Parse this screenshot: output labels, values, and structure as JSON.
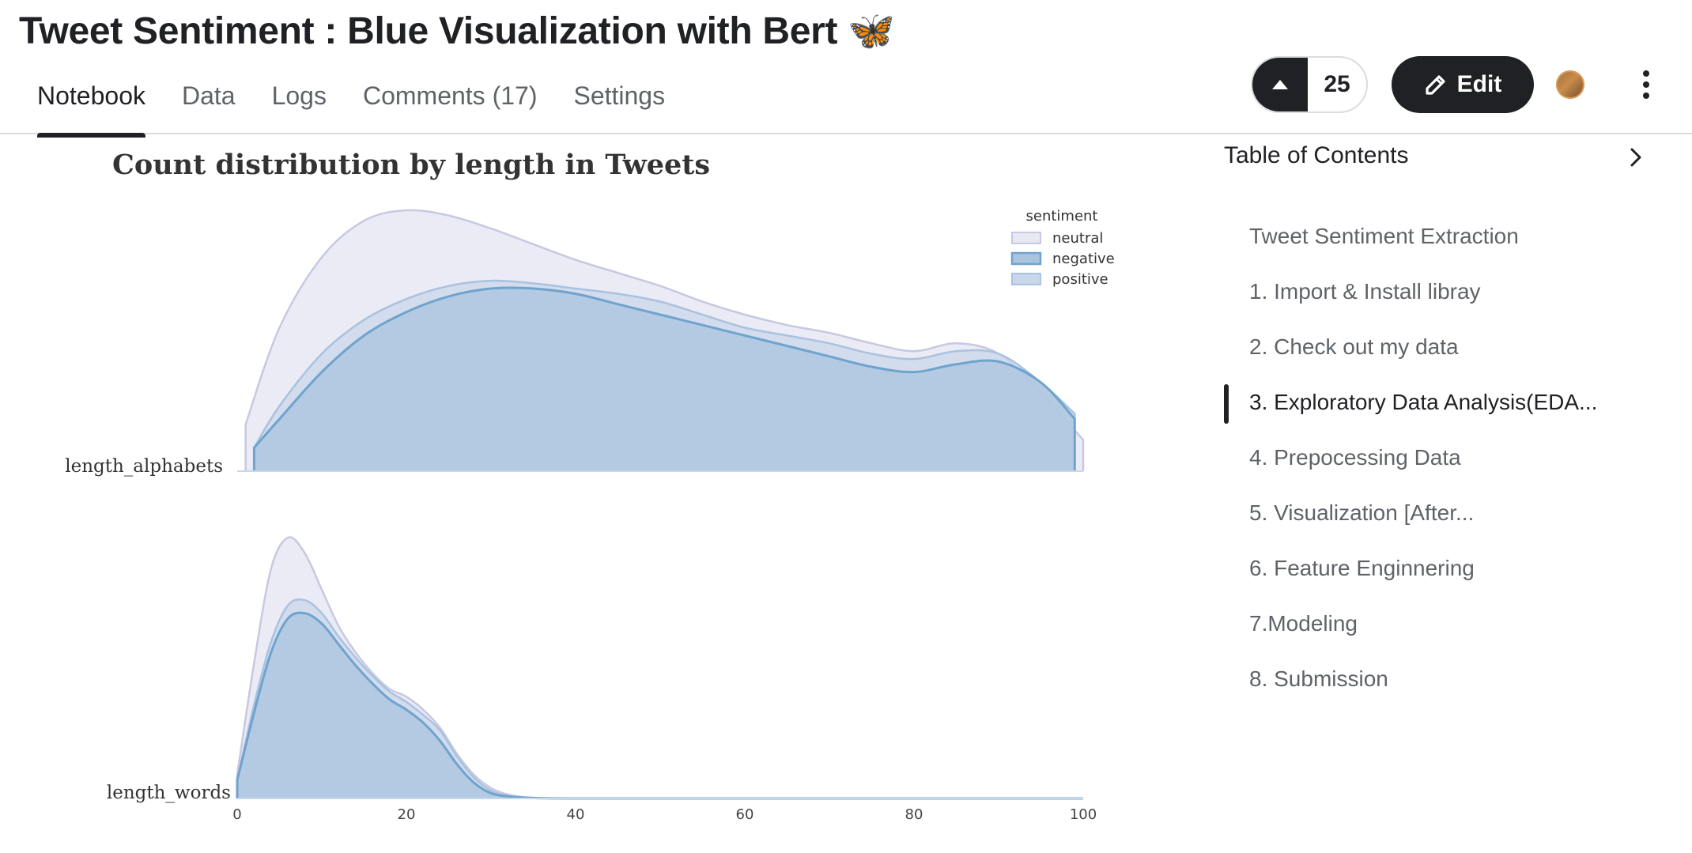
{
  "notebook": {
    "title": "Tweet Sentiment : Blue Visualization with Bert 🦋",
    "tabs": [
      {
        "label": "Notebook",
        "active": true
      },
      {
        "label": "Data",
        "active": false
      },
      {
        "label": "Logs",
        "active": false
      },
      {
        "label": "Comments (17)",
        "active": false
      },
      {
        "label": "Settings",
        "active": false
      }
    ],
    "vote_count": "25",
    "edit_label": "Edit"
  },
  "toc": {
    "header": "Table of Contents",
    "items": [
      {
        "label": "Tweet Sentiment Extraction",
        "active": false
      },
      {
        "label": "1. Import & Install libray",
        "active": false
      },
      {
        "label": "2. Check out my data",
        "active": false
      },
      {
        "label": "3. Exploratory Data Analysis(EDA...",
        "active": true
      },
      {
        "label": "4. Prepocessing Data",
        "active": false
      },
      {
        "label": "5. Visualization [After...",
        "active": false
      },
      {
        "label": "6. Feature Enginnering",
        "active": false
      },
      {
        "label": "7.Modeling",
        "active": false
      },
      {
        "label": "8. Submission",
        "active": false
      }
    ]
  },
  "chart_data": {
    "type": "area",
    "title": "Count distribution by length in Tweets",
    "legend": {
      "title": "sentiment",
      "placement": "top-right",
      "entries": [
        "neutral",
        "negative",
        "positive"
      ]
    },
    "xlim": [
      0,
      100
    ],
    "x_ticks": [
      0,
      20,
      40,
      60,
      80,
      100
    ],
    "colors": {
      "neutral": "#e8e8f3",
      "negative": "#a8c4de",
      "positive": "#c9d7ea",
      "negative_line": "#6fa3cd",
      "neutral_line": "#c7c8e2",
      "positive_line": "#a9c2e0"
    },
    "rows": [
      {
        "label": "length_alphabets",
        "series": [
          {
            "name": "neutral",
            "x": [
              1,
              5,
              10,
              15,
              20,
              25,
              30,
              35,
              40,
              45,
              50,
              55,
              60,
              65,
              70,
              75,
              80,
              85,
              90,
              95,
              100
            ],
            "y": [
              0.18,
              0.55,
              0.82,
              0.96,
              1.0,
              0.98,
              0.93,
              0.87,
              0.81,
              0.76,
              0.71,
              0.65,
              0.6,
              0.56,
              0.53,
              0.49,
              0.46,
              0.49,
              0.45,
              0.3,
              0.12
            ]
          },
          {
            "name": "positive",
            "x": [
              2,
              5,
              10,
              15,
              20,
              25,
              30,
              35,
              40,
              45,
              50,
              55,
              60,
              65,
              70,
              75,
              80,
              85,
              90,
              95,
              99
            ],
            "y": [
              0.09,
              0.25,
              0.45,
              0.58,
              0.66,
              0.71,
              0.73,
              0.72,
              0.7,
              0.68,
              0.65,
              0.6,
              0.55,
              0.52,
              0.49,
              0.45,
              0.43,
              0.46,
              0.45,
              0.34,
              0.22
            ]
          },
          {
            "name": "negative",
            "x": [
              2,
              5,
              10,
              15,
              20,
              25,
              30,
              35,
              40,
              45,
              50,
              55,
              60,
              65,
              70,
              75,
              80,
              85,
              90,
              95,
              99
            ],
            "y": [
              0.09,
              0.2,
              0.38,
              0.52,
              0.61,
              0.67,
              0.7,
              0.7,
              0.68,
              0.64,
              0.6,
              0.56,
              0.52,
              0.48,
              0.44,
              0.4,
              0.38,
              0.41,
              0.42,
              0.34,
              0.2
            ]
          }
        ]
      },
      {
        "label": "length_words",
        "series": [
          {
            "name": "neutral",
            "x": [
              0,
              2,
              4,
              6,
              8,
              10,
              12,
              14,
              16,
              18,
              20,
              22,
              24,
              26,
              28,
              30,
              32,
              34,
              36,
              40,
              60,
              100
            ],
            "y": [
              0.09,
              0.52,
              0.88,
              1.0,
              0.94,
              0.8,
              0.66,
              0.56,
              0.48,
              0.42,
              0.39,
              0.34,
              0.27,
              0.17,
              0.09,
              0.04,
              0.015,
              0.005,
              0.002,
              0.001,
              0.0,
              0.0
            ]
          },
          {
            "name": "positive",
            "x": [
              0,
              2,
              4,
              6,
              8,
              10,
              12,
              14,
              16,
              18,
              20,
              22,
              24,
              26,
              28,
              30,
              32,
              34,
              36,
              40,
              60,
              100
            ],
            "y": [
              0.07,
              0.36,
              0.6,
              0.74,
              0.76,
              0.71,
              0.62,
              0.54,
              0.47,
              0.41,
              0.37,
              0.32,
              0.26,
              0.16,
              0.08,
              0.03,
              0.01,
              0.004,
              0.001,
              0.0,
              0.0,
              0.0
            ]
          },
          {
            "name": "negative",
            "x": [
              0,
              2,
              4,
              6,
              8,
              10,
              12,
              14,
              16,
              18,
              20,
              22,
              24,
              26,
              28,
              30,
              32,
              34,
              36,
              40,
              60,
              100
            ],
            "y": [
              0.07,
              0.33,
              0.56,
              0.69,
              0.71,
              0.67,
              0.59,
              0.51,
              0.44,
              0.38,
              0.34,
              0.29,
              0.22,
              0.13,
              0.06,
              0.02,
              0.008,
              0.003,
              0.001,
              0.0,
              0.0,
              0.0
            ]
          }
        ]
      }
    ]
  }
}
